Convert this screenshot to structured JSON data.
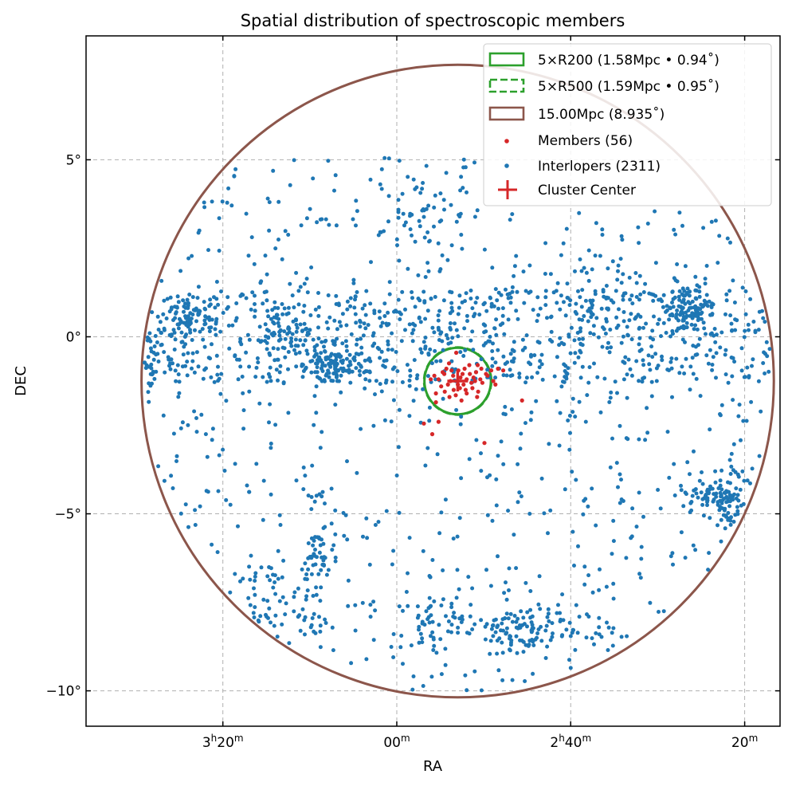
{
  "chart_data": {
    "type": "scatter",
    "title": "Spatial distribution of spectroscopic members",
    "xlabel": "RA",
    "ylabel": "DEC",
    "x_axis": {
      "units": "hours of right ascension (decreasing to the right)",
      "range_hours": [
        3.5955,
        2.2655
      ],
      "ticks": [
        {
          "value": 3.3333,
          "label_parts": [
            "3",
            "h",
            "20",
            "m"
          ]
        },
        {
          "value": 3.0,
          "label_parts": [
            "",
            "",
            "00",
            "m"
          ]
        },
        {
          "value": 2.6667,
          "label_parts": [
            "2",
            "h",
            "40",
            "m"
          ]
        },
        {
          "value": 2.3333,
          "label_parts": [
            "",
            "",
            "20",
            "m"
          ]
        }
      ]
    },
    "y_axis": {
      "units": "degrees of declination",
      "range_deg": [
        -11.0,
        8.5
      ],
      "ticks": [
        {
          "value": 5,
          "label": "5°"
        },
        {
          "value": 0,
          "label": "0°"
        },
        {
          "value": -5,
          "label": "−5°"
        },
        {
          "value": -10,
          "label": "−10°"
        }
      ]
    },
    "grid": true,
    "legend_position": "top-right",
    "cluster_center": {
      "ra_h": 2.8833,
      "dec": -1.25
    },
    "circles": [
      {
        "name": "5×R200 (1.58Mpc • 0.94$^\\circ$)",
        "label": "5×R200 (1.58Mpc • 0.94˚)",
        "radius_deg": 0.94,
        "style": "solid",
        "color": "#2ca02c"
      },
      {
        "name": "5×R500 (1.59Mpc • 0.95˚)",
        "label": "5×R500 (1.59Mpc • 0.95˚)",
        "radius_deg": 0.95,
        "style": "dashed",
        "color": "#2ca02c"
      },
      {
        "name": "15.00Mpc (8.935˚)",
        "label": "15.00Mpc (8.935˚)",
        "radius_deg": 8.935,
        "style": "solid",
        "color": "#8c564b"
      }
    ],
    "series": [
      {
        "name": "Members (56)",
        "label": "Members (56)",
        "color": "#d62728",
        "count": 56,
        "points": [
          [
            2.8833,
            -1.25
          ],
          [
            2.874,
            -1.05
          ],
          [
            2.866,
            -1.2
          ],
          [
            2.892,
            -1.1
          ],
          [
            2.902,
            -1.35
          ],
          [
            2.912,
            -1.0
          ],
          [
            2.857,
            -1.3
          ],
          [
            2.848,
            -1.0
          ],
          [
            2.838,
            -0.9
          ],
          [
            2.879,
            -1.45
          ],
          [
            2.895,
            -0.95
          ],
          [
            2.92,
            -1.2
          ],
          [
            2.853,
            -1.15
          ],
          [
            2.87,
            -0.9
          ],
          [
            2.826,
            -1.1
          ],
          [
            2.836,
            -1.3
          ],
          [
            2.819,
            -0.95
          ],
          [
            2.928,
            -1.1
          ],
          [
            2.908,
            -1.55
          ],
          [
            2.887,
            -1.65
          ],
          [
            2.844,
            -1.55
          ],
          [
            2.886,
            -0.45
          ],
          [
            2.806,
            -0.9
          ],
          [
            2.796,
            -0.95
          ],
          [
            2.76,
            -1.8
          ],
          [
            2.832,
            -3.0
          ],
          [
            2.92,
            -2.4
          ],
          [
            2.932,
            -2.75
          ],
          [
            2.948,
            -2.45
          ],
          [
            2.925,
            -1.6
          ],
          [
            2.935,
            -1.2
          ],
          [
            2.9,
            -0.75
          ],
          [
            2.861,
            -0.8
          ],
          [
            2.815,
            -1.25
          ],
          [
            2.868,
            -1.5
          ],
          [
            2.897,
            -1.25
          ],
          [
            2.878,
            -1.15
          ],
          [
            2.86,
            -1.05
          ],
          [
            2.909,
            -1.05
          ],
          [
            2.883,
            -1.35
          ],
          [
            2.85,
            -1.25
          ],
          [
            2.872,
            -1.35
          ],
          [
            2.84,
            -1.2
          ],
          [
            2.915,
            -1.4
          ],
          [
            2.891,
            -1.5
          ],
          [
            2.855,
            -1.45
          ],
          [
            2.829,
            -1.05
          ],
          [
            2.905,
            -0.9
          ],
          [
            2.882,
            -0.95
          ],
          [
            2.845,
            -0.8
          ],
          [
            2.866,
            -1.6
          ],
          [
            2.811,
            -1.35
          ],
          [
            2.899,
            -1.7
          ],
          [
            2.925,
            -1.85
          ],
          [
            2.846,
            -1.7
          ],
          [
            2.876,
            -1.8
          ]
        ]
      },
      {
        "name": "Interlopers (2311)",
        "label": "Interlopers (2311)",
        "color": "#1f77b4",
        "count": 2311,
        "note": "positions generated from the visible density structure",
        "structure": {
          "equatorial_band": {
            "ra_range": [
              2.28,
              3.56
            ],
            "dec_range": [
              -1.3,
              1.3
            ],
            "n": 780
          },
          "clumps": [
            {
              "ra": 3.5,
              "dec": -0.5,
              "sra": 0.03,
              "sdec": 0.35,
              "n": 90
            },
            {
              "ra": 3.4,
              "dec": 0.5,
              "sra": 0.03,
              "sdec": 0.35,
              "n": 70
            },
            {
              "ra": 3.21,
              "dec": 0.1,
              "sra": 0.025,
              "sdec": 0.35,
              "n": 60
            },
            {
              "ra": 3.12,
              "dec": -0.8,
              "sra": 0.025,
              "sdec": 0.2,
              "n": 80
            },
            {
              "ra": 2.44,
              "dec": 0.8,
              "sra": 0.03,
              "sdec": 0.35,
              "n": 110
            },
            {
              "ra": 2.36,
              "dec": -4.6,
              "sra": 0.02,
              "sdec": 0.45,
              "n": 70
            },
            {
              "ra": 2.41,
              "dec": -4.4,
              "sra": 0.02,
              "sdec": 0.25,
              "n": 40
            },
            {
              "ra": 2.75,
              "dec": -8.3,
              "sra": 0.05,
              "sdec": 0.35,
              "n": 110
            },
            {
              "ra": 3.15,
              "dec": -6.2,
              "sra": 0.02,
              "sdec": 0.4,
              "n": 40
            },
            {
              "ra": 3.24,
              "dec": -7.5,
              "sra": 0.06,
              "sdec": 0.6,
              "n": 80
            },
            {
              "ra": 2.91,
              "dec": -8.0,
              "sra": 0.05,
              "sdec": 0.4,
              "n": 60
            },
            {
              "ra": 2.95,
              "dec": 3.5,
              "sra": 0.04,
              "sdec": 0.8,
              "n": 60
            },
            {
              "ra": 2.62,
              "dec": 1.5,
              "sra": 0.05,
              "sdec": 0.6,
              "n": 40
            }
          ],
          "background": {
            "n": 700
          }
        }
      }
    ]
  }
}
